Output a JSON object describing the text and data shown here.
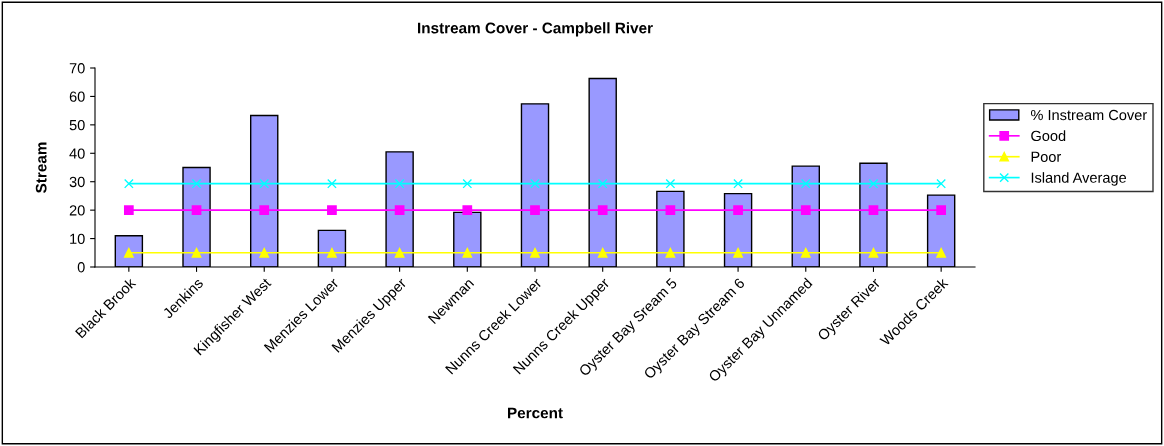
{
  "chart_data": {
    "type": "bar",
    "title": "Instream Cover - Campbell River",
    "xlabel": "Percent",
    "ylabel": "Stream",
    "categories": [
      "Black Brook",
      "Jenkins",
      "Kingfisher West",
      "Menzies Lower",
      "Menzies Upper",
      "Newman",
      "Nunns Creek Lower",
      "Nunns Creek Upper",
      "Oyster Bay Sream 5",
      "Oyster Bay Stream 6",
      "Oyster Bay Unnamed",
      "Oyster River",
      "Woods Creek"
    ],
    "series": [
      {
        "name": "% Instream Cover",
        "color": "#9999ff",
        "values": [
          11,
          35,
          53.3,
          12.9,
          40.5,
          19.2,
          57.4,
          66.3,
          26.6,
          25.8,
          35.5,
          36.5,
          25.3
        ]
      },
      {
        "name": "Good",
        "type": "line",
        "color": "#ff00ff",
        "marker": "square",
        "values": [
          20,
          20,
          20,
          20,
          20,
          20,
          20,
          20,
          20,
          20,
          20,
          20,
          20
        ]
      },
      {
        "name": "Poor",
        "type": "line",
        "color": "#ffff00",
        "marker": "triangle",
        "values": [
          5,
          5,
          5,
          5,
          5,
          5,
          5,
          5,
          5,
          5,
          5,
          5,
          5
        ]
      },
      {
        "name": "Island Average",
        "type": "line",
        "color": "#00ffff",
        "marker": "cross",
        "values": [
          29.3,
          29.3,
          29.3,
          29.3,
          29.3,
          29.3,
          29.3,
          29.3,
          29.3,
          29.3,
          29.3,
          29.3,
          29.3
        ]
      }
    ],
    "ylim": [
      0,
      70
    ],
    "yticks": [
      0,
      10,
      20,
      30,
      40,
      50,
      60,
      70
    ],
    "grid": false,
    "legend": "right"
  }
}
